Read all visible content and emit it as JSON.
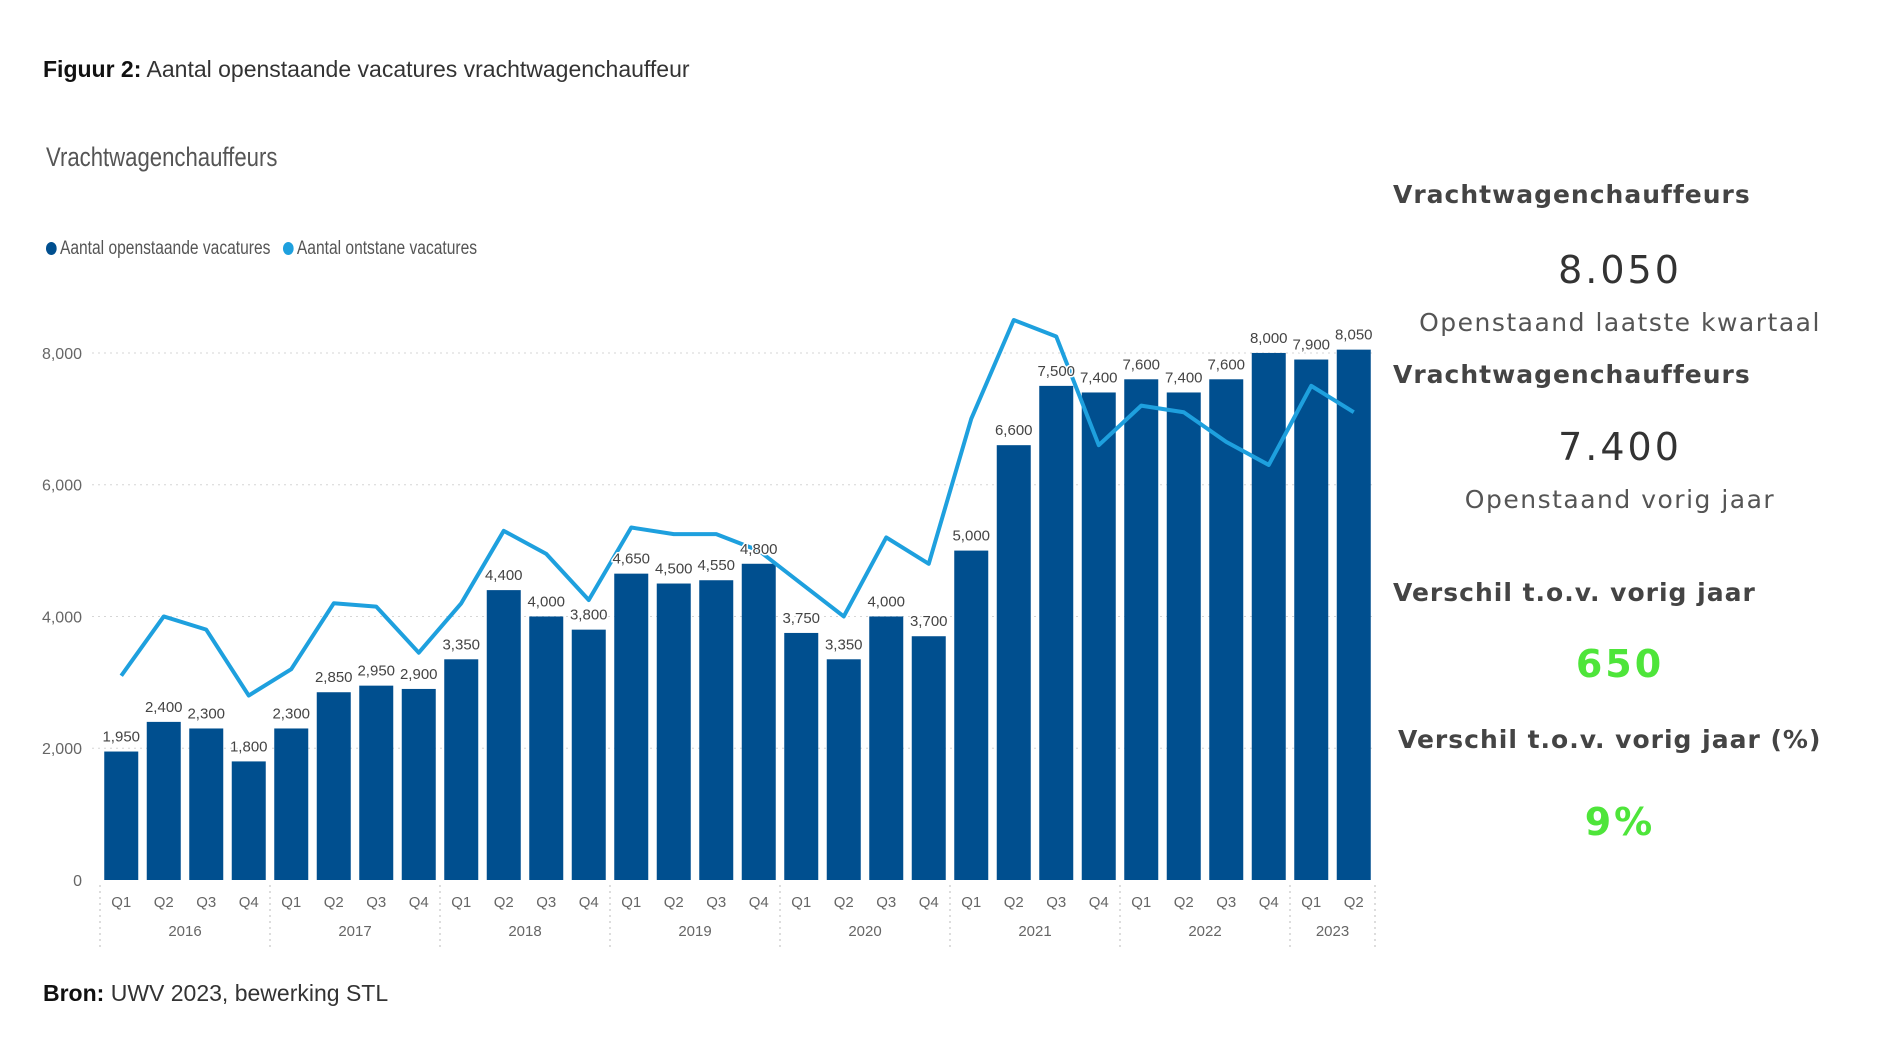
{
  "caption": {
    "label": "Figuur 2:",
    "text": "Aantal openstaande vacatures vrachtwagenchauffeur"
  },
  "source": {
    "label": "Bron:",
    "text": "UWV 2023, bewerking STL"
  },
  "colors": {
    "bar": "#004f8f",
    "line": "#1ea0de",
    "accent_green": "#4ee53a"
  },
  "chart_data": {
    "type": "bar",
    "title": "Vrachtwagenchauffeurs",
    "legend_position": "top-left",
    "grid": true,
    "ylim": [
      0,
      8500
    ],
    "y_ticks": [
      "0",
      "2,000",
      "4,000",
      "6,000",
      "8,000"
    ],
    "y_tick_values": [
      0,
      2000,
      4000,
      6000,
      8000
    ],
    "categories": [
      "Q1",
      "Q2",
      "Q3",
      "Q4",
      "Q1",
      "Q2",
      "Q3",
      "Q4",
      "Q1",
      "Q2",
      "Q3",
      "Q4",
      "Q1",
      "Q2",
      "Q3",
      "Q4",
      "Q1",
      "Q2",
      "Q3",
      "Q4",
      "Q1",
      "Q2",
      "Q3",
      "Q4",
      "Q1",
      "Q2",
      "Q3",
      "Q4",
      "Q1",
      "Q2"
    ],
    "years": [
      {
        "label": "2016",
        "count": 4
      },
      {
        "label": "2017",
        "count": 4
      },
      {
        "label": "2018",
        "count": 4
      },
      {
        "label": "2019",
        "count": 4
      },
      {
        "label": "2020",
        "count": 4
      },
      {
        "label": "2021",
        "count": 4
      },
      {
        "label": "2022",
        "count": 4
      },
      {
        "label": "2023",
        "count": 2
      }
    ],
    "series": [
      {
        "name": "Aantal openstaande vacatures",
        "kind": "bar",
        "values": [
          1950,
          2400,
          2300,
          1800,
          2300,
          2850,
          2950,
          2900,
          3350,
          4400,
          4000,
          3800,
          4650,
          4500,
          4550,
          4800,
          3750,
          3350,
          4000,
          3700,
          5000,
          6600,
          7500,
          7400,
          7600,
          7400,
          7600,
          8000,
          7900,
          8050
        ],
        "labels": [
          "1,950",
          "2,400",
          "2,300",
          "1,800",
          "2,300",
          "2,850",
          "2,950",
          "2,900",
          "3,350",
          "4,400",
          "4,000",
          "3,800",
          "4,650",
          "4,500",
          "4,550",
          "4,800",
          "3,750",
          "3,350",
          "4,000",
          "3,700",
          "5,000",
          "6,600",
          "7,500",
          "7,400",
          "7,600",
          "7,400",
          "7,600",
          "8,000",
          "7,900",
          "8,050"
        ]
      },
      {
        "name": "Aantal ontstane vacatures",
        "kind": "line",
        "values": [
          3100,
          4000,
          3800,
          2800,
          3200,
          4200,
          4150,
          3450,
          4200,
          5300,
          4950,
          4250,
          5350,
          5250,
          5250,
          5000,
          4500,
          4000,
          5200,
          4800,
          7000,
          8500,
          8250,
          6600,
          7200,
          7100,
          6650,
          6300,
          7500,
          7100
        ]
      }
    ]
  },
  "kpis": {
    "current_title": "Vrachtwagenchauffeurs",
    "current_value": "8.050",
    "current_sub": "Openstaand laatste kwartaal",
    "previous_title": "Vrachtwagenchauffeurs",
    "previous_value": "7.400",
    "previous_sub": "Openstaand vorig jaar",
    "diff_title": "Verschil t.o.v. vorig jaar",
    "diff_value": "650",
    "diff_pct_title": "Verschil t.o.v. vorig jaar (%)",
    "diff_pct_value": "9%"
  }
}
